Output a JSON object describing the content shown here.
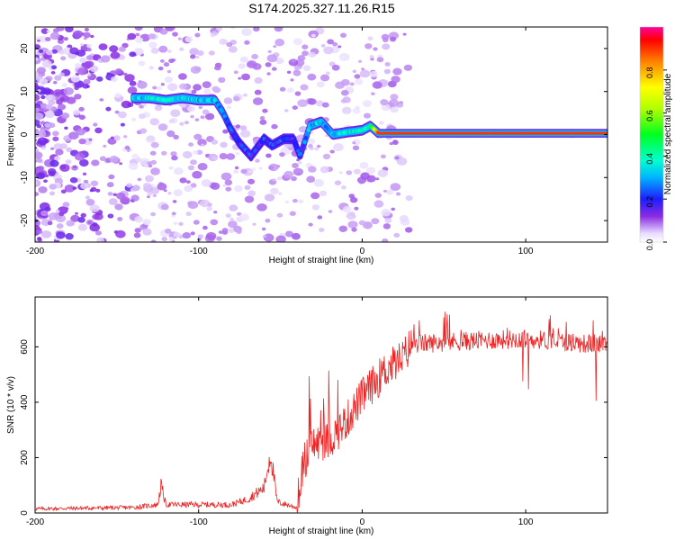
{
  "title": "S174.2025.327.11.26.R15",
  "chart_data": [
    {
      "type": "heatmap",
      "xlabel": "Height of straight line (km)",
      "ylabel": "Frequency (Hz)",
      "xlim": [
        -200,
        150
      ],
      "ylim": [
        -25,
        25
      ],
      "xticks": [
        -200,
        -100,
        0,
        100
      ],
      "xtick_labels": [
        "-200",
        "-100",
        "0",
        "100"
      ],
      "yticks": [
        -20,
        -10,
        0,
        10,
        20
      ],
      "ytick_labels": [
        "-20",
        "-10",
        "0",
        "10",
        "20"
      ],
      "colorbar": {
        "label": "Normalized spectral amplitude",
        "range": [
          0,
          1
        ],
        "ticks": [
          0,
          0.2,
          0.4,
          0.6,
          0.8
        ],
        "tick_labels": [
          "0.0",
          "0.2",
          "0.4",
          "0.6",
          "0.8"
        ]
      },
      "ridge": [
        {
          "x": -140,
          "y": 8.5,
          "amp": 0.3
        },
        {
          "x": -130,
          "y": 8.5,
          "amp": 0.35
        },
        {
          "x": -120,
          "y": 8.0,
          "amp": 0.35
        },
        {
          "x": -110,
          "y": 8.5,
          "amp": 0.35
        },
        {
          "x": -100,
          "y": 8.0,
          "amp": 0.3
        },
        {
          "x": -90,
          "y": 8.0,
          "amp": 0.3
        },
        {
          "x": -85,
          "y": 5.0,
          "amp": 0.25
        },
        {
          "x": -80,
          "y": 1.0,
          "amp": 0.2
        },
        {
          "x": -75,
          "y": -2.0,
          "amp": 0.2
        },
        {
          "x": -68,
          "y": -5.0,
          "amp": 0.2
        },
        {
          "x": -60,
          "y": -1.0,
          "amp": 0.2
        },
        {
          "x": -55,
          "y": -2.5,
          "amp": 0.2
        },
        {
          "x": -48,
          "y": -1.0,
          "amp": 0.2
        },
        {
          "x": -42,
          "y": -1.0,
          "amp": 0.2
        },
        {
          "x": -38,
          "y": -5.0,
          "amp": 0.2
        },
        {
          "x": -32,
          "y": 2.0,
          "amp": 0.3
        },
        {
          "x": -25,
          "y": 3.0,
          "amp": 0.3
        },
        {
          "x": -18,
          "y": 0.0,
          "amp": 0.3
        },
        {
          "x": -10,
          "y": 0.5,
          "amp": 0.35
        },
        {
          "x": 0,
          "y": 1.0,
          "amp": 0.4
        },
        {
          "x": 5,
          "y": 2.0,
          "amp": 0.4
        },
        {
          "x": 10,
          "y": 0.3,
          "amp": 0.9
        },
        {
          "x": 150,
          "y": 0.3,
          "amp": 0.9
        }
      ]
    },
    {
      "type": "line",
      "xlabel": "Height of straight line (km)",
      "ylabel": "SNR (10 * v/v)",
      "xlim": [
        -200,
        150
      ],
      "ylim": [
        0,
        780
      ],
      "xticks": [
        -200,
        -100,
        0,
        100
      ],
      "xtick_labels": [
        "-200",
        "-100",
        "0",
        "100"
      ],
      "yticks": [
        0,
        200,
        400,
        600
      ],
      "ytick_labels": [
        "0",
        "200",
        "400",
        "600"
      ],
      "color": "#ee2222",
      "series_envelope": [
        {
          "x": -200,
          "y": 15
        },
        {
          "x": -140,
          "y": 20
        },
        {
          "x": -125,
          "y": 30
        },
        {
          "x": -123,
          "y": 100
        },
        {
          "x": -120,
          "y": 30
        },
        {
          "x": -80,
          "y": 30
        },
        {
          "x": -70,
          "y": 50
        },
        {
          "x": -60,
          "y": 90
        },
        {
          "x": -56,
          "y": 220
        },
        {
          "x": -52,
          "y": 40
        },
        {
          "x": -40,
          "y": 20
        },
        {
          "x": -36,
          "y": 180
        },
        {
          "x": -30,
          "y": 250
        },
        {
          "x": -20,
          "y": 260
        },
        {
          "x": -10,
          "y": 330
        },
        {
          "x": 0,
          "y": 420
        },
        {
          "x": 15,
          "y": 520
        },
        {
          "x": 25,
          "y": 560
        },
        {
          "x": 30,
          "y": 610
        },
        {
          "x": 60,
          "y": 620
        },
        {
          "x": 100,
          "y": 630
        },
        {
          "x": 140,
          "y": 610
        },
        {
          "x": 150,
          "y": 620
        }
      ]
    }
  ]
}
